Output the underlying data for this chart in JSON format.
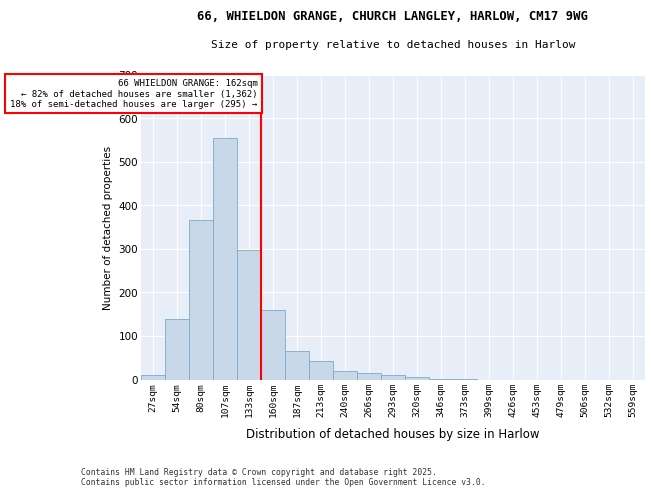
{
  "title": "66, WHIELDON GRANGE, CHURCH LANGLEY, HARLOW, CM17 9WG",
  "subtitle": "Size of property relative to detached houses in Harlow",
  "xlabel": "Distribution of detached houses by size in Harlow",
  "ylabel": "Number of detached properties",
  "bar_color": "#c8d8e8",
  "bar_edge_color": "#7aaac8",
  "bg_color": "#e8eef8",
  "categories": [
    "27sqm",
    "54sqm",
    "80sqm",
    "107sqm",
    "133sqm",
    "160sqm",
    "187sqm",
    "213sqm",
    "240sqm",
    "266sqm",
    "293sqm",
    "320sqm",
    "346sqm",
    "373sqm",
    "399sqm",
    "426sqm",
    "453sqm",
    "479sqm",
    "506sqm",
    "532sqm",
    "559sqm"
  ],
  "values": [
    10,
    138,
    365,
    555,
    298,
    160,
    65,
    43,
    20,
    15,
    10,
    5,
    2,
    1,
    0,
    0,
    0,
    0,
    0,
    0,
    0
  ],
  "ylim": [
    0,
    700
  ],
  "yticks": [
    0,
    100,
    200,
    300,
    400,
    500,
    600,
    700
  ],
  "red_line_index": 5,
  "annotation_line1": "66 WHIELDON GRANGE: 162sqm",
  "annotation_line2": "← 82% of detached houses are smaller (1,362)",
  "annotation_line3": "18% of semi-detached houses are larger (295) →",
  "footer1": "Contains HM Land Registry data © Crown copyright and database right 2025.",
  "footer2": "Contains public sector information licensed under the Open Government Licence v3.0."
}
